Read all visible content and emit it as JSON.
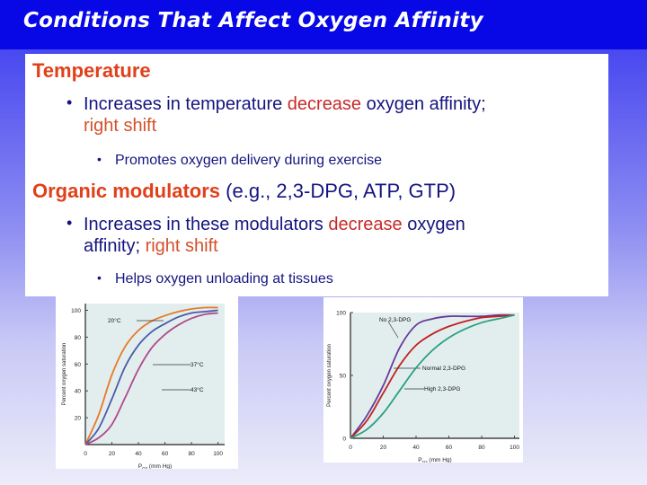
{
  "slide": {
    "title": "Conditions That Affect Oxygen Affinity",
    "sections": [
      {
        "heading": "Temperature",
        "bullet": {
          "pre": "Increases in temperature ",
          "emph": "decrease",
          "post": " oxygen affinity;",
          "line2": "right shift"
        },
        "sub_bullet": "Promotes oxygen delivery during exercise"
      },
      {
        "heading": "Organic modulators",
        "heading_suffix": " (e.g., 2,3-DPG, ATP, GTP)",
        "bullet": {
          "pre": "Increases in these modulators ",
          "emph": "decrease",
          "post": " oxygen",
          "line2a": "affinity; ",
          "line2b": "right shift"
        },
        "sub_bullet": "Helps oxygen unloading at tissues"
      }
    ]
  },
  "chart_data": [
    {
      "type": "line",
      "title": "",
      "xlabel": "PO2 (mm Hg)",
      "ylabel": "Percent oxygen saturation",
      "x": [
        0,
        10,
        20,
        30,
        40,
        50,
        60,
        70,
        80,
        90,
        100
      ],
      "xticks": [
        0,
        20,
        40,
        60,
        80,
        100
      ],
      "yticks": [
        20,
        40,
        60,
        80,
        100
      ],
      "xlim": [
        0,
        105
      ],
      "ylim": [
        0,
        105
      ],
      "series": [
        {
          "name": "20°C",
          "color": "#e8782a",
          "values": [
            0,
            22,
            52,
            73,
            85,
            92,
            96,
            99,
            101,
            102,
            102
          ]
        },
        {
          "name": "37°C",
          "color": "#4a5aa8",
          "values": [
            0,
            12,
            34,
            58,
            74,
            84,
            90,
            95,
            98,
            99,
            100
          ]
        },
        {
          "name": "43°C",
          "color": "#b04a8a",
          "values": [
            0,
            5,
            15,
            35,
            56,
            72,
            82,
            89,
            94,
            97,
            98
          ]
        }
      ],
      "annotations": [
        "20°C",
        "37°C",
        "43°C"
      ],
      "grid": false
    },
    {
      "type": "line",
      "title": "",
      "xlabel": "PO2 (mm Hg)",
      "ylabel": "Percent oxygen saturation",
      "x": [
        0,
        10,
        20,
        30,
        40,
        50,
        60,
        70,
        80,
        90,
        100
      ],
      "xticks": [
        0,
        20,
        40,
        60,
        80,
        100
      ],
      "yticks": [
        0,
        50,
        100
      ],
      "xlim": [
        0,
        103
      ],
      "ylim": [
        0,
        100
      ],
      "series": [
        {
          "name": "No 2,3-DPG",
          "color": "#6a3a9a",
          "values": [
            0,
            18,
            42,
            72,
            90,
            95,
            97,
            97,
            97,
            98,
            98
          ]
        },
        {
          "name": "Normal 2,3-DPG",
          "color": "#c02020",
          "values": [
            0,
            14,
            36,
            58,
            74,
            83,
            89,
            93,
            96,
            97,
            98
          ]
        },
        {
          "name": "High 2,3-DPG",
          "color": "#2aa080",
          "values": [
            0,
            7,
            20,
            38,
            56,
            70,
            80,
            87,
            92,
            95,
            98
          ]
        }
      ],
      "annotations": [
        "No 2,3-DPG",
        "Normal 2,3-DPG",
        "High 2,3-DPG"
      ],
      "grid": false
    }
  ]
}
